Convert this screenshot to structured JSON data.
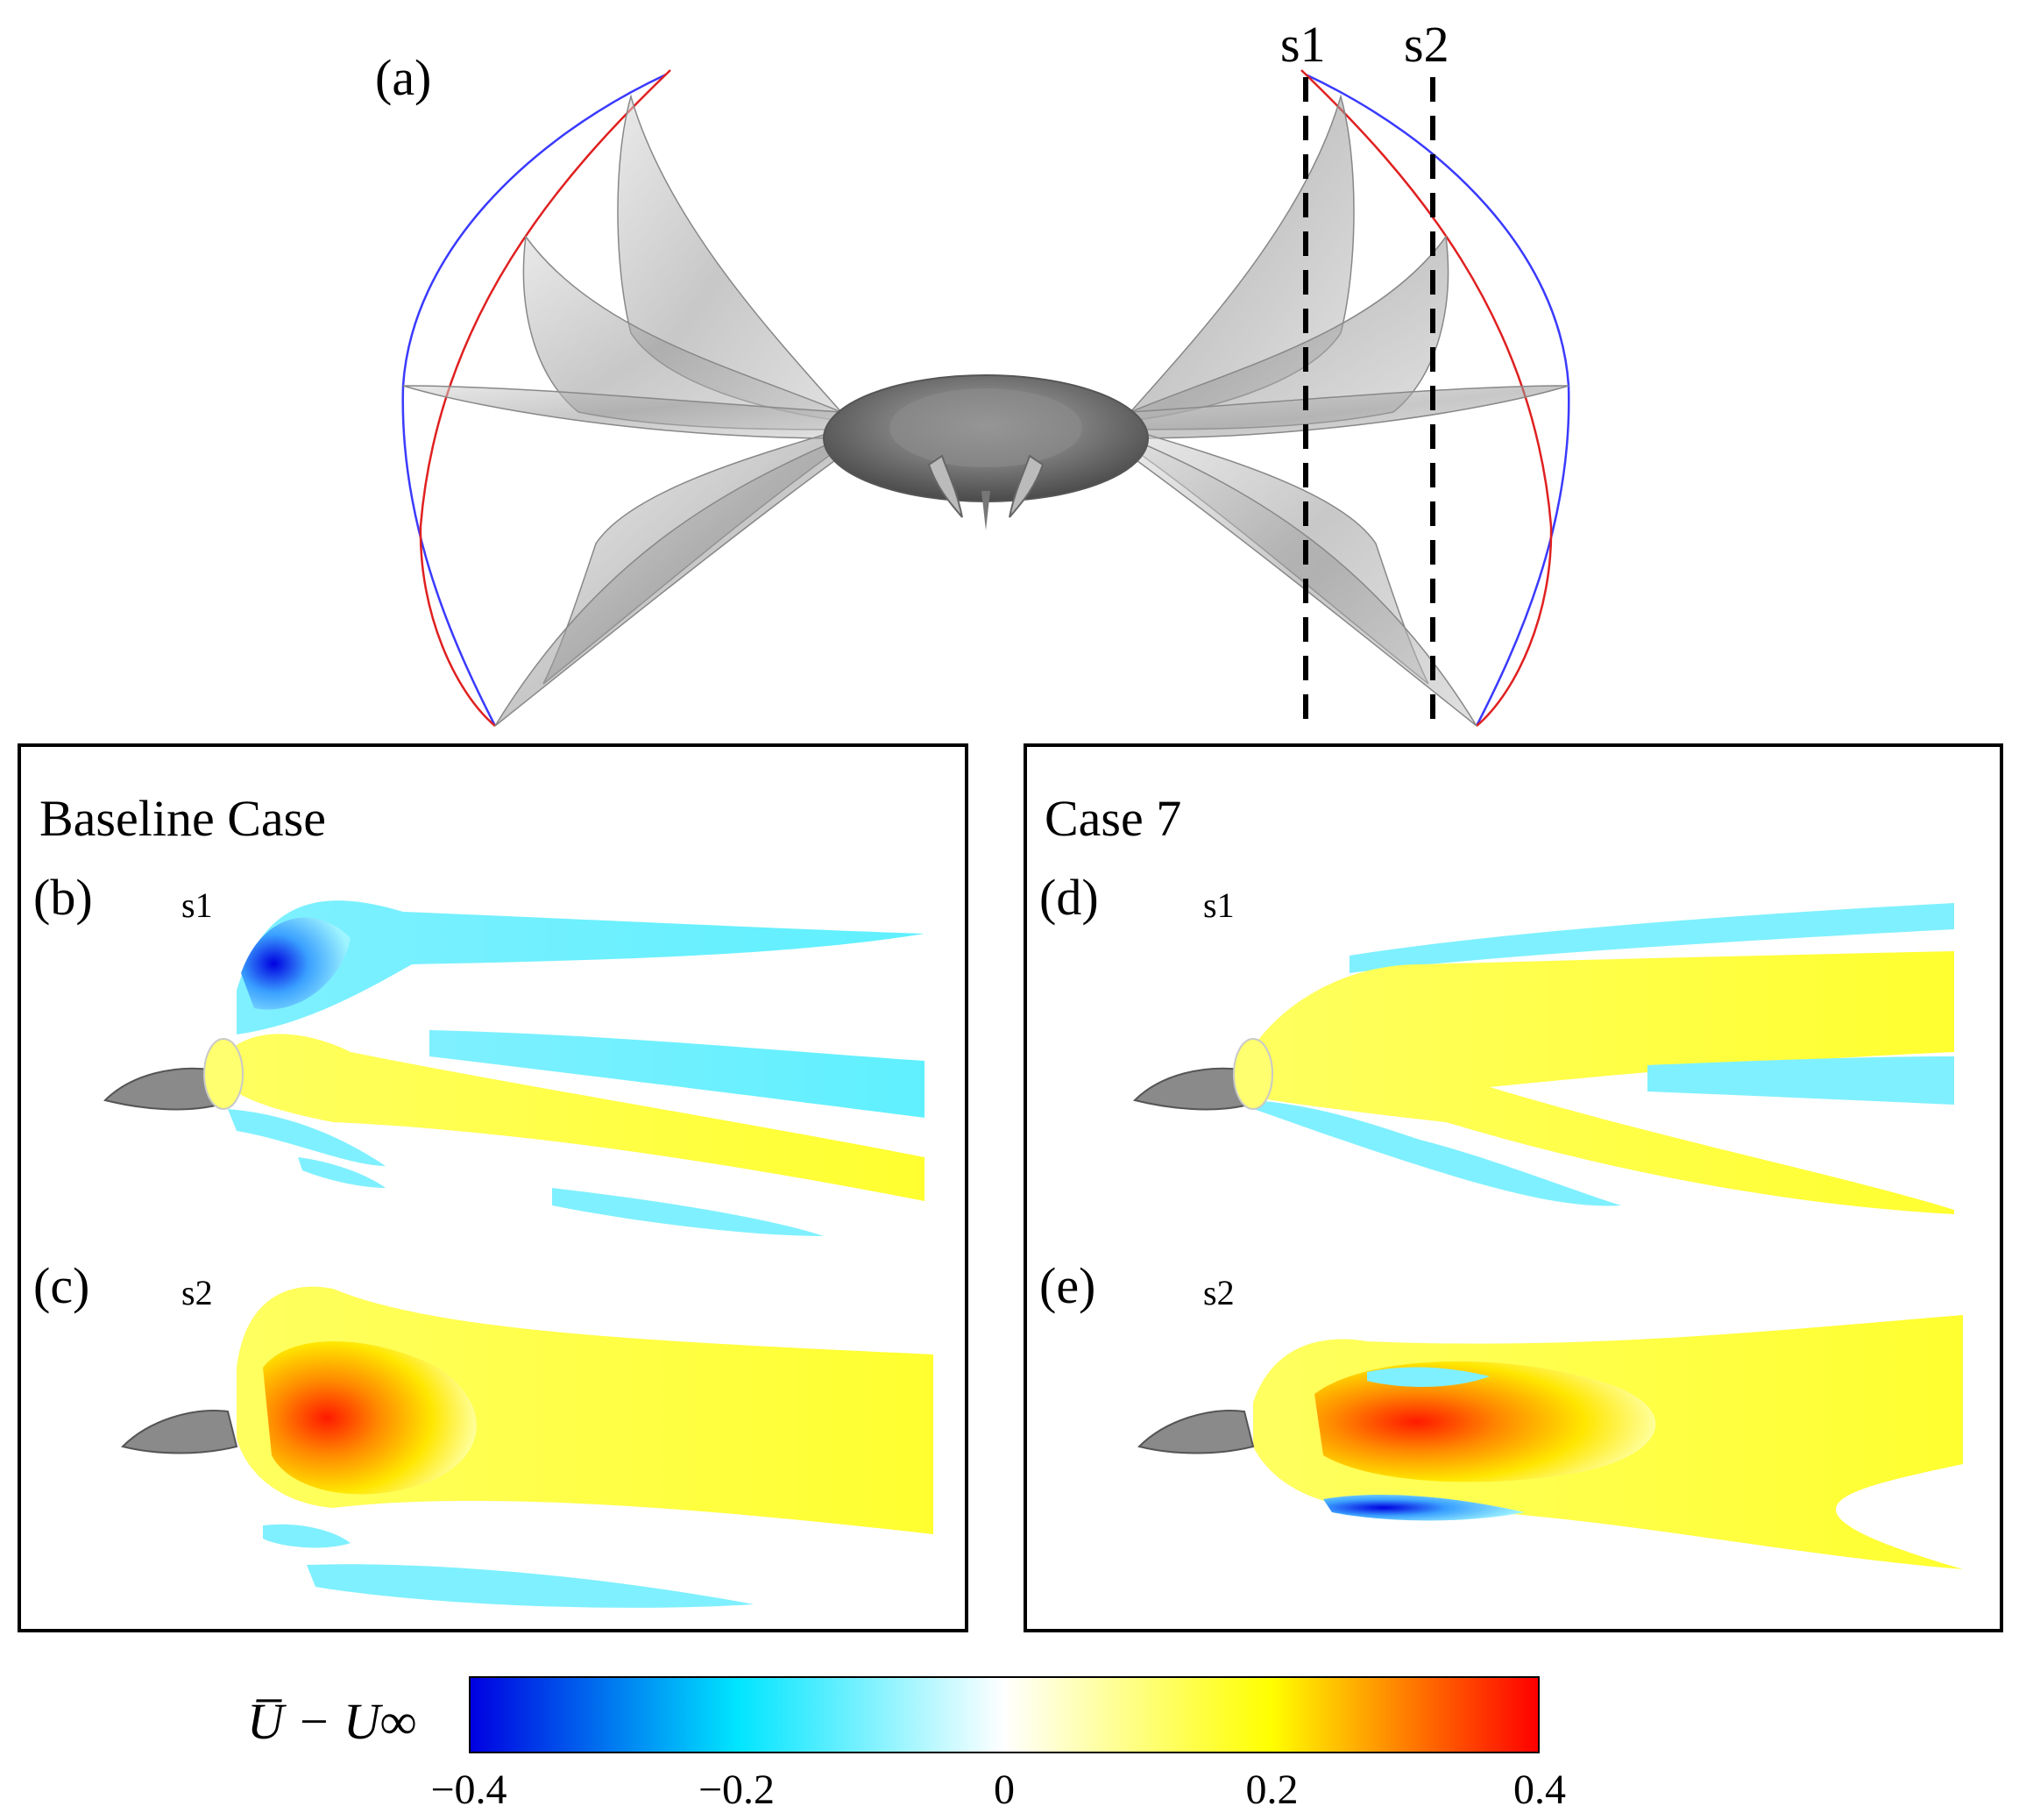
{
  "figure": {
    "panel_a_label": "(a)",
    "cut_s1_label": "s1",
    "cut_s2_label": "s2",
    "left_panel": {
      "title": "Baseline Case",
      "top_label": "(b)",
      "top_cut": "s1",
      "bottom_label": "(c)",
      "bottom_cut": "s2"
    },
    "right_panel": {
      "title": "Case 7",
      "top_label": "(d)",
      "top_cut": "s1",
      "bottom_label": "(e)",
      "bottom_cut": "s2"
    },
    "colorbar": {
      "label": "U̅ − U∞",
      "min": -0.4,
      "max": 0.4,
      "ticks": [
        "−0.4",
        "−0.2",
        "0",
        "0.2",
        "0.4"
      ],
      "colors": [
        "#0000e0",
        "#00e5ff",
        "#ffffff",
        "#ffff00",
        "#ff0000"
      ]
    },
    "outline_colors": {
      "upstroke": "#3a3aff",
      "downstroke": "#e02020"
    }
  }
}
